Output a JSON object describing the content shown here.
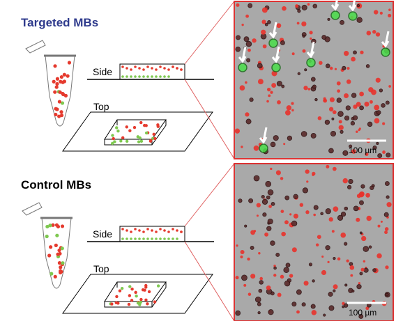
{
  "panels": [
    {
      "title": "Targeted MBs",
      "side_label": "Side",
      "top_label": "Top",
      "scale_bar": "100 µm"
    },
    {
      "title": "Control MBs",
      "side_label": "Side",
      "top_label": "Top",
      "scale_bar": "100 µm"
    }
  ]
}
